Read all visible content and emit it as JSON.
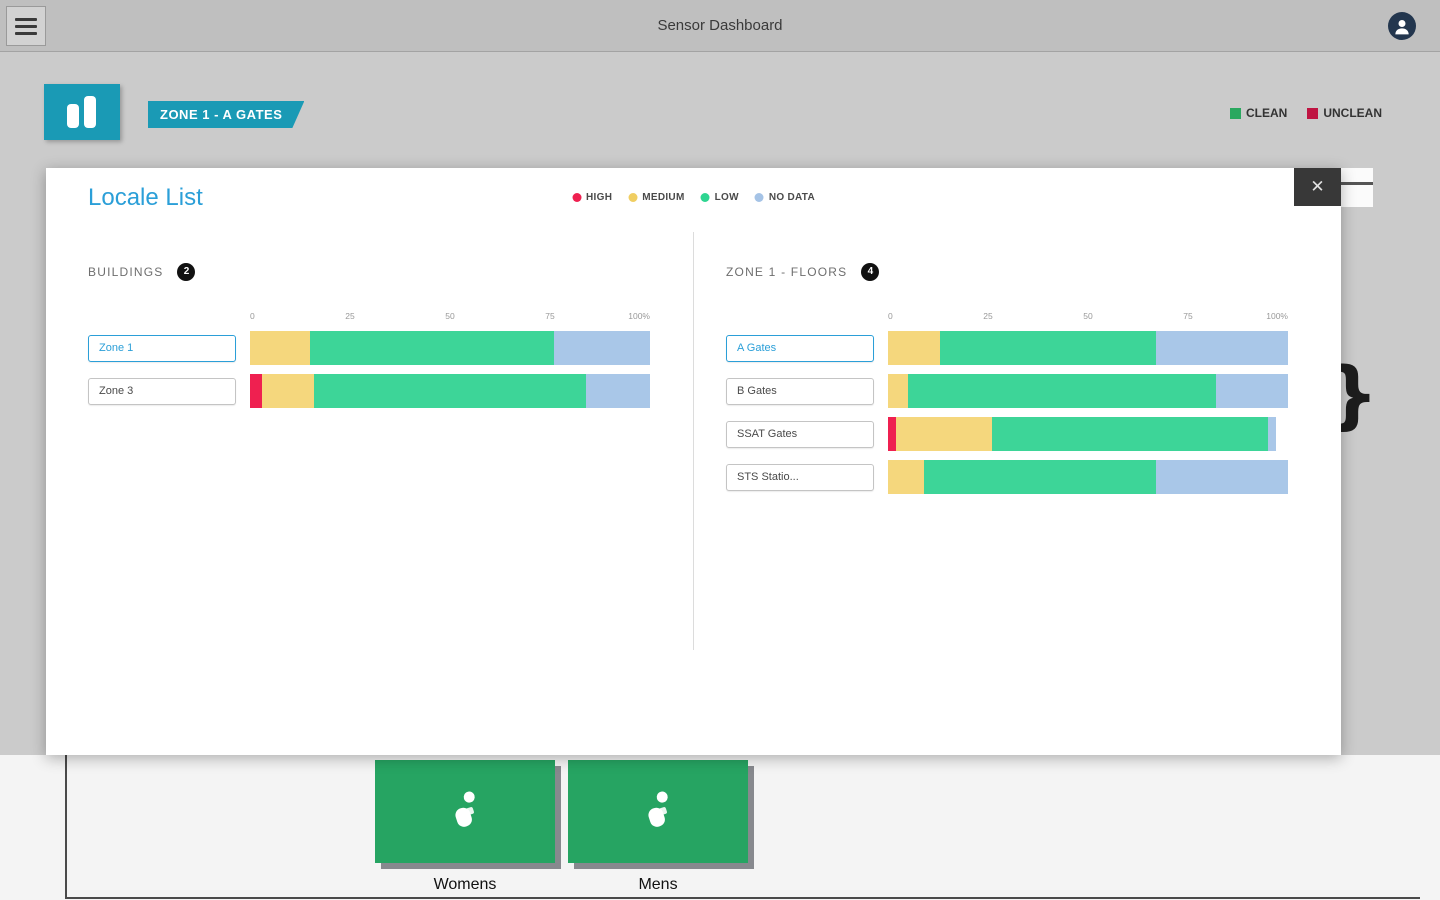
{
  "topbar": {
    "title": "Sensor Dashboard"
  },
  "header": {
    "zone_badge": "ZONE 1 - A GATES",
    "legend": [
      {
        "label": "CLEAN",
        "color": "#2aa85f"
      },
      {
        "label": "UNCLEAN",
        "color": "#bf1442"
      }
    ]
  },
  "modal": {
    "title": "Locale List",
    "close_glyph": "✕",
    "legend": [
      {
        "label": "HIGH",
        "color": "#ef2050"
      },
      {
        "label": "MEDIUM",
        "color": "#f0ce62"
      },
      {
        "label": "LOW",
        "color": "#2ed591"
      },
      {
        "label": "NO DATA",
        "color": "#a5c3e6"
      }
    ],
    "sections": [
      {
        "title": "BUILDINGS",
        "count": "2",
        "axis": [
          "0",
          "25",
          "50",
          "75",
          "100%"
        ],
        "rows": [
          {
            "label": "Zone 1",
            "selected": true,
            "segments": [
              {
                "level": "medium",
                "pct": 15
              },
              {
                "level": "low",
                "pct": 61
              },
              {
                "level": "nodata",
                "pct": 24
              }
            ]
          },
          {
            "label": "Zone 3",
            "selected": false,
            "segments": [
              {
                "level": "high",
                "pct": 3
              },
              {
                "level": "medium",
                "pct": 13
              },
              {
                "level": "low",
                "pct": 68
              },
              {
                "level": "nodata",
                "pct": 16
              }
            ]
          }
        ]
      },
      {
        "title": "ZONE 1 - FLOORS",
        "count": "4",
        "axis": [
          "0",
          "25",
          "50",
          "75",
          "100%"
        ],
        "rows": [
          {
            "label": "A Gates",
            "selected": true,
            "segments": [
              {
                "level": "medium",
                "pct": 13
              },
              {
                "level": "low",
                "pct": 54
              },
              {
                "level": "nodata",
                "pct": 33
              }
            ]
          },
          {
            "label": "B Gates",
            "selected": false,
            "segments": [
              {
                "level": "medium",
                "pct": 5
              },
              {
                "level": "low",
                "pct": 77
              },
              {
                "level": "nodata",
                "pct": 18
              }
            ]
          },
          {
            "label": "SSAT Gates",
            "selected": false,
            "segments": [
              {
                "level": "high",
                "pct": 2
              },
              {
                "level": "medium",
                "pct": 24
              },
              {
                "level": "low",
                "pct": 69
              },
              {
                "level": "nodata",
                "pct": 2
              }
            ]
          },
          {
            "label": "STS Statio...",
            "selected": false,
            "segments": [
              {
                "level": "medium",
                "pct": 9
              },
              {
                "level": "low",
                "pct": 58
              },
              {
                "level": "nodata",
                "pct": 33
              }
            ]
          }
        ]
      }
    ]
  },
  "palette": {
    "high": "#ef2050",
    "medium": "#f5d77d",
    "low": "#3dd598",
    "nodata": "#a9c7e8"
  },
  "colors": {
    "accent_blue": "#2b9fd8",
    "teal": "#1a9ab5",
    "tile_green": "#26a462"
  },
  "background": {
    "tiles": [
      {
        "label": "Womens"
      },
      {
        "label": "Mens"
      }
    ],
    "brace_glyph": "}"
  }
}
